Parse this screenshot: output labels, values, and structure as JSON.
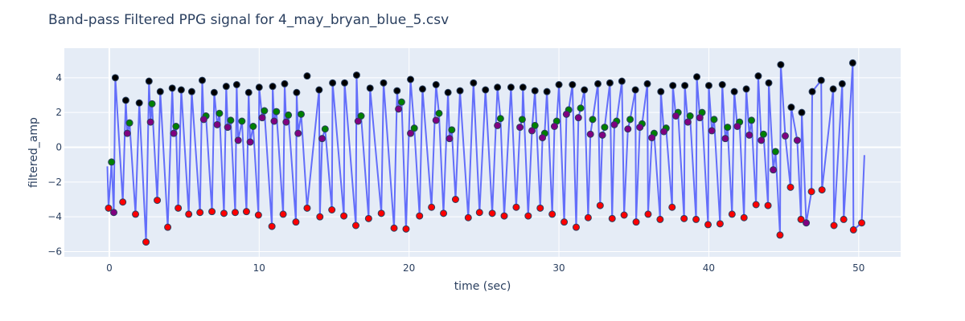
{
  "chart_data": {
    "type": "line",
    "title": "Band-pass Filtered PPG signal for 4_may_bryan_blue_5.csv",
    "xlabel": "time (sec)",
    "ylabel": "filtered_amp",
    "xlim": [
      -3,
      52.8
    ],
    "ylim": [
      -6.3,
      5.7
    ],
    "xticks": [
      0,
      10,
      20,
      30,
      40,
      50
    ],
    "yticks": [
      -6,
      -4,
      -2,
      0,
      2,
      4
    ],
    "grid": true,
    "legend": "none",
    "colors": {
      "plot_bg": "#e5ecf6",
      "grid": "#ffffff",
      "signal": "#636efa",
      "peak": "#000000",
      "trough": "#ff0000",
      "notch": "#800080",
      "dicrotic_peak": "#008000",
      "marker_edge": "#2a3f5f"
    },
    "series": [
      {
        "type": "line",
        "peaks": [
          [
            0.4,
            4.0
          ],
          [
            1.1,
            2.7
          ],
          [
            2.0,
            2.55
          ],
          [
            2.65,
            3.8
          ],
          [
            3.4,
            3.2
          ],
          [
            4.2,
            3.4
          ],
          [
            4.8,
            3.3
          ],
          [
            5.5,
            3.2
          ],
          [
            6.2,
            3.85
          ],
          [
            7.0,
            3.15
          ],
          [
            7.8,
            3.5
          ],
          [
            8.5,
            3.6
          ],
          [
            9.3,
            3.15
          ],
          [
            10.0,
            3.45
          ],
          [
            10.9,
            3.5
          ],
          [
            11.7,
            3.65
          ],
          [
            12.5,
            3.15
          ],
          [
            13.2,
            4.1
          ],
          [
            14.0,
            3.3
          ],
          [
            14.9,
            3.7
          ],
          [
            15.7,
            3.7
          ],
          [
            16.5,
            4.15
          ],
          [
            17.4,
            3.4
          ],
          [
            18.3,
            3.7
          ],
          [
            19.2,
            3.25
          ],
          [
            20.1,
            3.9
          ],
          [
            20.9,
            3.35
          ],
          [
            21.8,
            3.6
          ],
          [
            22.6,
            3.15
          ],
          [
            23.4,
            3.25
          ],
          [
            24.3,
            3.7
          ],
          [
            25.1,
            3.3
          ],
          [
            25.9,
            3.45
          ],
          [
            26.8,
            3.45
          ],
          [
            27.6,
            3.45
          ],
          [
            28.4,
            3.25
          ],
          [
            29.2,
            3.2
          ],
          [
            30.0,
            3.6
          ],
          [
            30.9,
            3.6
          ],
          [
            31.7,
            3.3
          ],
          [
            32.6,
            3.65
          ],
          [
            33.4,
            3.7
          ],
          [
            34.2,
            3.8
          ],
          [
            35.1,
            3.3
          ],
          [
            35.9,
            3.65
          ],
          [
            36.8,
            3.2
          ],
          [
            37.6,
            3.55
          ],
          [
            38.4,
            3.55
          ],
          [
            39.2,
            4.05
          ],
          [
            40.0,
            3.55
          ],
          [
            40.9,
            3.6
          ],
          [
            41.7,
            3.2
          ],
          [
            42.5,
            3.35
          ],
          [
            43.3,
            4.1
          ],
          [
            44.0,
            3.7
          ],
          [
            44.8,
            4.75
          ],
          [
            45.5,
            2.3
          ],
          [
            46.2,
            2.0
          ],
          [
            46.9,
            3.2
          ],
          [
            47.5,
            3.85
          ],
          [
            48.3,
            3.35
          ],
          [
            48.9,
            3.65
          ],
          [
            49.6,
            4.85
          ]
        ],
        "troughs": [
          [
            -0.05,
            -3.5
          ],
          [
            0.9,
            -3.15
          ],
          [
            1.75,
            -3.85
          ],
          [
            2.45,
            -5.45
          ],
          [
            3.2,
            -3.05
          ],
          [
            3.9,
            -4.6
          ],
          [
            4.6,
            -3.5
          ],
          [
            5.3,
            -3.85
          ],
          [
            6.05,
            -3.75
          ],
          [
            6.85,
            -3.7
          ],
          [
            7.65,
            -3.8
          ],
          [
            8.4,
            -3.75
          ],
          [
            9.15,
            -3.7
          ],
          [
            9.95,
            -3.9
          ],
          [
            10.85,
            -4.55
          ],
          [
            11.6,
            -3.85
          ],
          [
            12.45,
            -4.3
          ],
          [
            13.2,
            -3.5
          ],
          [
            14.05,
            -4.0
          ],
          [
            14.85,
            -3.6
          ],
          [
            15.65,
            -3.95
          ],
          [
            16.45,
            -4.5
          ],
          [
            17.3,
            -4.1
          ],
          [
            18.15,
            -3.8
          ],
          [
            19.0,
            -4.65
          ],
          [
            19.8,
            -4.7
          ],
          [
            20.7,
            -3.95
          ],
          [
            21.5,
            -3.45
          ],
          [
            22.3,
            -3.8
          ],
          [
            23.1,
            -3.0
          ],
          [
            23.95,
            -4.05
          ],
          [
            24.7,
            -3.75
          ],
          [
            25.55,
            -3.8
          ],
          [
            26.35,
            -3.95
          ],
          [
            27.15,
            -3.45
          ],
          [
            27.95,
            -3.95
          ],
          [
            28.75,
            -3.5
          ],
          [
            29.55,
            -3.85
          ],
          [
            30.35,
            -4.3
          ],
          [
            31.15,
            -4.6
          ],
          [
            31.95,
            -4.05
          ],
          [
            32.75,
            -3.35
          ],
          [
            33.55,
            -4.1
          ],
          [
            34.35,
            -3.9
          ],
          [
            35.15,
            -4.3
          ],
          [
            35.95,
            -3.85
          ],
          [
            36.75,
            -4.15
          ],
          [
            37.55,
            -3.45
          ],
          [
            38.35,
            -4.1
          ],
          [
            39.15,
            -4.15
          ],
          [
            39.95,
            -4.45
          ],
          [
            40.75,
            -4.4
          ],
          [
            41.55,
            -3.85
          ],
          [
            42.35,
            -4.05
          ],
          [
            43.15,
            -3.3
          ],
          [
            43.95,
            -3.35
          ],
          [
            44.75,
            -5.05
          ],
          [
            45.45,
            -2.3
          ],
          [
            46.15,
            -4.15
          ],
          [
            46.85,
            -2.55
          ],
          [
            47.55,
            -2.45
          ],
          [
            48.35,
            -4.5
          ],
          [
            49.0,
            -4.15
          ],
          [
            49.65,
            -4.75
          ],
          [
            50.2,
            -4.35
          ]
        ],
        "notches": [
          [
            0.3,
            -3.75
          ],
          [
            1.2,
            0.8
          ],
          [
            2.75,
            1.45
          ],
          [
            4.3,
            0.8
          ],
          [
            6.3,
            1.6
          ],
          [
            7.2,
            1.3
          ],
          [
            7.9,
            1.15
          ],
          [
            8.6,
            0.4
          ],
          [
            9.4,
            0.3
          ],
          [
            10.2,
            1.7
          ],
          [
            11.0,
            1.5
          ],
          [
            11.8,
            1.45
          ],
          [
            12.6,
            0.8
          ],
          [
            14.2,
            0.5
          ],
          [
            16.6,
            1.5
          ],
          [
            19.3,
            2.2
          ],
          [
            20.1,
            0.8
          ],
          [
            21.8,
            1.55
          ],
          [
            22.7,
            0.5
          ],
          [
            25.9,
            1.25
          ],
          [
            27.4,
            1.15
          ],
          [
            28.2,
            0.95
          ],
          [
            28.9,
            0.55
          ],
          [
            29.7,
            1.2
          ],
          [
            30.5,
            1.9
          ],
          [
            31.3,
            1.7
          ],
          [
            32.1,
            0.75
          ],
          [
            32.9,
            0.7
          ],
          [
            33.7,
            1.3
          ],
          [
            34.6,
            1.05
          ],
          [
            35.4,
            1.15
          ],
          [
            36.2,
            0.55
          ],
          [
            37.0,
            0.9
          ],
          [
            37.8,
            1.8
          ],
          [
            38.6,
            1.45
          ],
          [
            39.4,
            1.7
          ],
          [
            40.2,
            0.95
          ],
          [
            41.1,
            0.5
          ],
          [
            41.9,
            1.2
          ],
          [
            42.7,
            0.7
          ],
          [
            43.5,
            0.4
          ],
          [
            44.3,
            -1.3
          ],
          [
            45.1,
            0.65
          ],
          [
            45.9,
            0.4
          ],
          [
            46.5,
            -4.35
          ]
        ],
        "dicrotic_peaks": [
          [
            0.15,
            -0.85
          ],
          [
            1.35,
            1.4
          ],
          [
            2.85,
            2.5
          ],
          [
            4.45,
            1.2
          ],
          [
            6.45,
            1.8
          ],
          [
            7.35,
            1.95
          ],
          [
            8.1,
            1.55
          ],
          [
            8.85,
            1.5
          ],
          [
            9.6,
            1.2
          ],
          [
            10.35,
            2.1
          ],
          [
            11.15,
            2.05
          ],
          [
            11.95,
            1.85
          ],
          [
            12.8,
            1.9
          ],
          [
            14.4,
            1.05
          ],
          [
            16.8,
            1.8
          ],
          [
            19.5,
            2.6
          ],
          [
            20.35,
            1.1
          ],
          [
            22.0,
            1.95
          ],
          [
            22.85,
            1.0
          ],
          [
            26.1,
            1.65
          ],
          [
            27.55,
            1.6
          ],
          [
            28.4,
            1.25
          ],
          [
            29.05,
            0.8
          ],
          [
            29.85,
            1.5
          ],
          [
            30.65,
            2.15
          ],
          [
            31.45,
            2.25
          ],
          [
            32.25,
            1.6
          ],
          [
            33.05,
            1.15
          ],
          [
            33.85,
            1.5
          ],
          [
            34.75,
            1.6
          ],
          [
            35.55,
            1.35
          ],
          [
            36.35,
            0.8
          ],
          [
            37.15,
            1.1
          ],
          [
            37.95,
            2.0
          ],
          [
            38.75,
            1.8
          ],
          [
            39.55,
            2.0
          ],
          [
            40.35,
            1.6
          ],
          [
            41.25,
            1.15
          ],
          [
            42.05,
            1.45
          ],
          [
            42.85,
            1.55
          ],
          [
            43.65,
            0.75
          ],
          [
            44.45,
            -0.25
          ]
        ]
      }
    ]
  }
}
